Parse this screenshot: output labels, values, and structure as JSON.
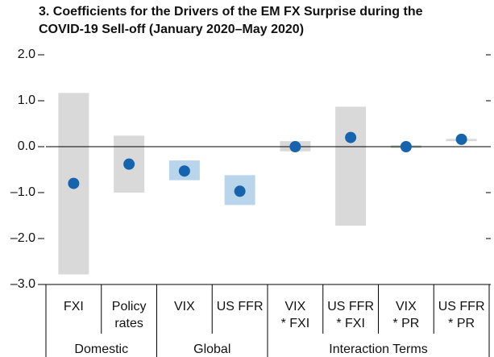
{
  "chart_data": {
    "type": "coefficient",
    "title": [
      "3. Coefficients for the Drivers of the EM FX Surprise during the",
      "COVID-19 Sell-off (January 2020–May 2020)"
    ],
    "categories": [
      [
        "FXI"
      ],
      [
        "Policy",
        "rates"
      ],
      [
        "VIX"
      ],
      [
        "US FFR"
      ],
      [
        "VIX",
        "* FXI"
      ],
      [
        "US FFR",
        "* FXI"
      ],
      [
        "VIX",
        "* PR"
      ],
      [
        "US FFR",
        "* PR"
      ]
    ],
    "groups": [
      {
        "label": "Domestic",
        "span": 2
      },
      {
        "label": "Global",
        "span": 2
      },
      {
        "label": "Interaction Terms",
        "span": 4
      }
    ],
    "estimates": [
      -0.8,
      -0.38,
      -0.53,
      -0.97,
      0.0,
      0.2,
      0.0,
      0.16
    ],
    "upper": [
      1.17,
      0.24,
      -0.3,
      -0.62,
      0.12,
      0.87,
      0.03,
      0.17
    ],
    "lower": [
      -2.78,
      -1.0,
      -0.73,
      -1.27,
      -0.1,
      -1.72,
      -0.03,
      0.12
    ],
    "bar_colors": [
      "#d9d9d9",
      "#d9d9d9",
      "#b9d5ec",
      "#b9d5ec",
      "#d9d9d9",
      "#d9d9d9",
      "#c9d6c4",
      "#d9d9d9"
    ],
    "point_color": "#1764ae",
    "ylim": [
      -3,
      2
    ],
    "yticks": [
      {
        "value": 2,
        "label": "2.0"
      },
      {
        "value": 1,
        "label": "1.0"
      },
      {
        "value": 0,
        "label": "0.0"
      },
      {
        "value": -1,
        "label": "–1.0"
      },
      {
        "value": -2,
        "label": "–2.0"
      },
      {
        "value": -3,
        "label": "–3.0"
      }
    ]
  }
}
